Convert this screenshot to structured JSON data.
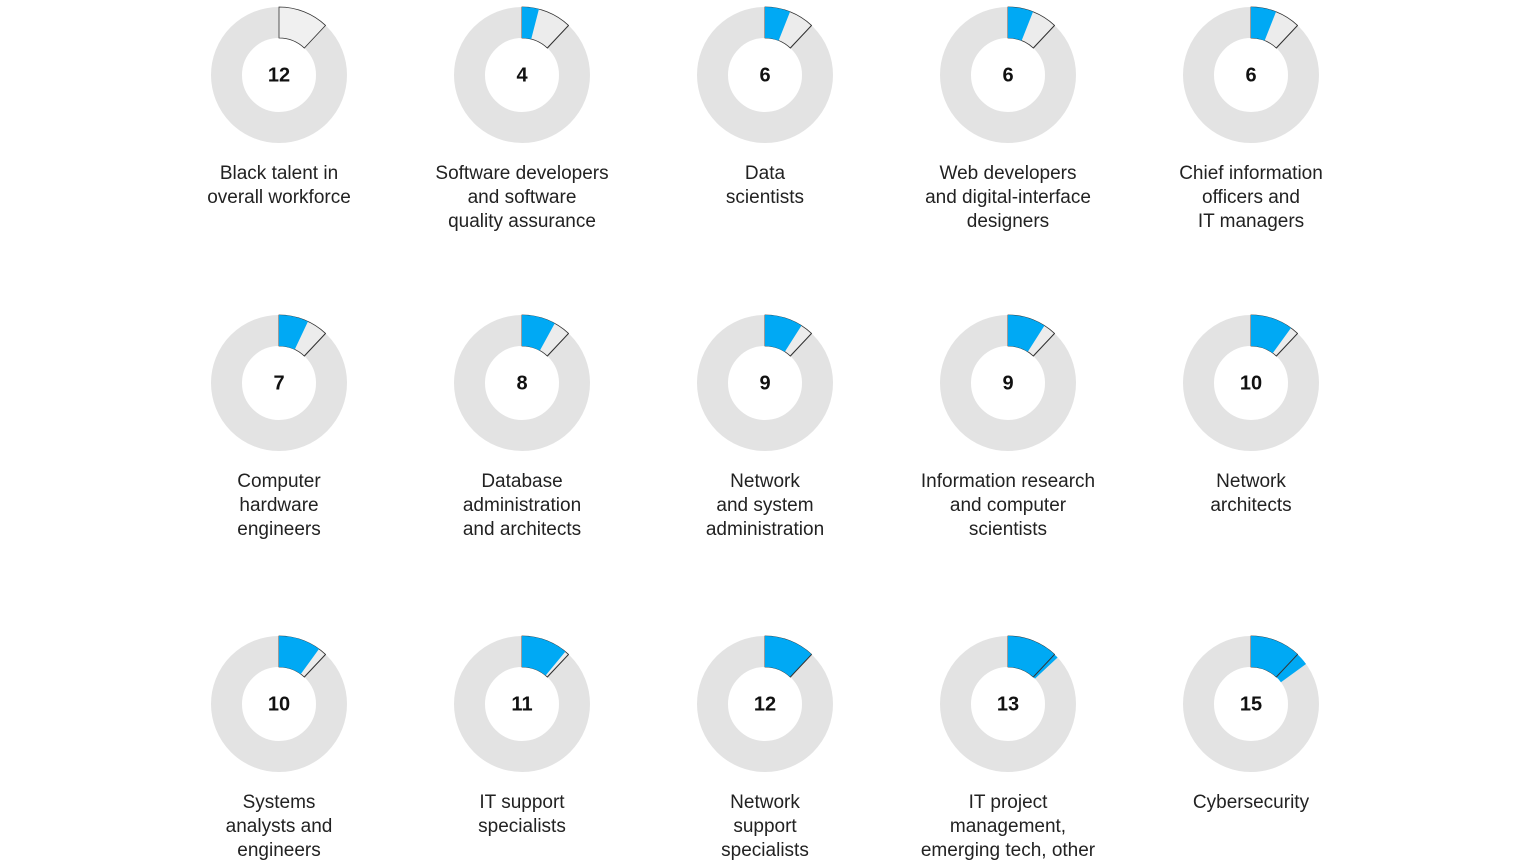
{
  "chart_data": [
    {
      "type": "donut",
      "value": 12,
      "label": [
        "Black talent in",
        "overall workforce"
      ]
    },
    {
      "type": "donut",
      "value": 4,
      "label": [
        "Software developers",
        "and software",
        "quality assurance"
      ]
    },
    {
      "type": "donut",
      "value": 6,
      "label": [
        "Data",
        "scientists"
      ]
    },
    {
      "type": "donut",
      "value": 6,
      "label": [
        "Web developers",
        "and digital-interface",
        "designers"
      ]
    },
    {
      "type": "donut",
      "value": 6,
      "label": [
        "Chief information",
        "officers and",
        "IT managers"
      ]
    },
    {
      "type": "donut",
      "value": 7,
      "label": [
        "Computer",
        "hardware",
        "engineers"
      ]
    },
    {
      "type": "donut",
      "value": 8,
      "label": [
        "Database",
        "administration",
        "and architects"
      ]
    },
    {
      "type": "donut",
      "value": 9,
      "label": [
        "Network",
        "and system",
        "administration"
      ]
    },
    {
      "type": "donut",
      "value": 9,
      "label": [
        "Information research",
        "and computer",
        "scientists"
      ]
    },
    {
      "type": "donut",
      "value": 10,
      "label": [
        "Network",
        "architects"
      ]
    },
    {
      "type": "donut",
      "value": 10,
      "label": [
        "Systems",
        "analysts and",
        "engineers"
      ]
    },
    {
      "type": "donut",
      "value": 11,
      "label": [
        "IT support",
        "specialists"
      ]
    },
    {
      "type": "donut",
      "value": 12,
      "label": [
        "Network",
        "support",
        "specialists"
      ]
    },
    {
      "type": "donut",
      "value": 13,
      "label": [
        "IT project",
        "management,",
        "emerging tech, other"
      ]
    },
    {
      "type": "donut",
      "value": 15,
      "label": [
        "Cybersecurity"
      ]
    }
  ]
}
